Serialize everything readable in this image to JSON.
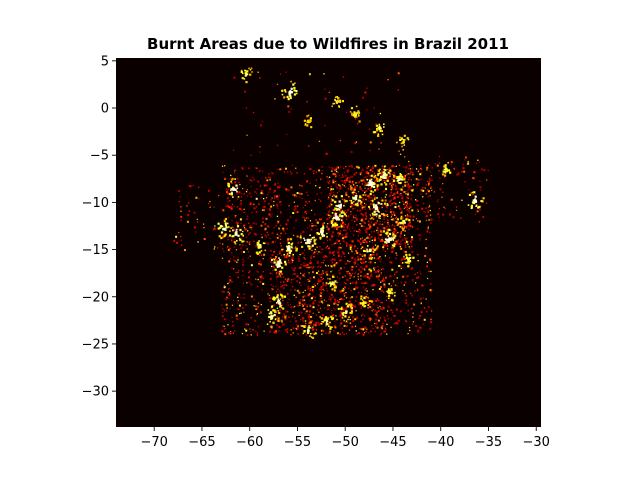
{
  "chart_data": {
    "type": "heatmap",
    "title": "Burnt Areas due to Wildfires in Brazil 2011",
    "xlabel": "",
    "ylabel": "",
    "xlim": [
      -74,
      -29.5
    ],
    "ylim": [
      -33.8,
      5.3
    ],
    "x_ticks": [
      -70,
      -65,
      -60,
      -55,
      -50,
      -45,
      -40,
      -35,
      -30
    ],
    "x_tick_labels": [
      "−70",
      "−65",
      "−60",
      "−55",
      "−50",
      "−45",
      "−40",
      "−35",
      "−30"
    ],
    "y_ticks": [
      5,
      0,
      -5,
      -10,
      -15,
      -20,
      -25,
      -30
    ],
    "y_tick_labels": [
      "5",
      "0",
      "−5",
      "−10",
      "−15",
      "−20",
      "−25",
      "−30"
    ],
    "colormap": "hot",
    "background_color": "#0a0000",
    "grid": false,
    "hotspots": [
      {
        "lon": -60.5,
        "lat": 3.8,
        "intensity": 0.6
      },
      {
        "lon": -55.8,
        "lat": 1.8,
        "intensity": 1.0
      },
      {
        "lon": -51.0,
        "lat": 0.8,
        "intensity": 0.5
      },
      {
        "lon": -49.0,
        "lat": -0.6,
        "intensity": 0.5
      },
      {
        "lon": -46.5,
        "lat": -2.0,
        "intensity": 0.6
      },
      {
        "lon": -44.0,
        "lat": -3.5,
        "intensity": 0.5
      },
      {
        "lon": -54.0,
        "lat": -1.3,
        "intensity": 0.4
      },
      {
        "lon": -61.8,
        "lat": -8.5,
        "intensity": 0.9
      },
      {
        "lon": -62.8,
        "lat": -12.7,
        "intensity": 0.9
      },
      {
        "lon": -61.5,
        "lat": -13.2,
        "intensity": 0.9
      },
      {
        "lon": -59.0,
        "lat": -14.5,
        "intensity": 0.7
      },
      {
        "lon": -57.0,
        "lat": -16.5,
        "intensity": 1.0
      },
      {
        "lon": -56.0,
        "lat": -14.8,
        "intensity": 0.8
      },
      {
        "lon": -54.0,
        "lat": -14.0,
        "intensity": 1.0
      },
      {
        "lon": -52.5,
        "lat": -13.0,
        "intensity": 0.9
      },
      {
        "lon": -51.0,
        "lat": -11.5,
        "intensity": 1.0
      },
      {
        "lon": -50.7,
        "lat": -10.3,
        "intensity": 1.0
      },
      {
        "lon": -49.0,
        "lat": -9.5,
        "intensity": 0.9
      },
      {
        "lon": -47.5,
        "lat": -8.0,
        "intensity": 1.0
      },
      {
        "lon": -46.0,
        "lat": -7.0,
        "intensity": 0.9
      },
      {
        "lon": -44.5,
        "lat": -7.5,
        "intensity": 0.8
      },
      {
        "lon": -46.8,
        "lat": -10.5,
        "intensity": 1.0
      },
      {
        "lon": -45.5,
        "lat": -13.8,
        "intensity": 1.0
      },
      {
        "lon": -47.5,
        "lat": -15.0,
        "intensity": 0.8
      },
      {
        "lon": -44.0,
        "lat": -12.0,
        "intensity": 0.7
      },
      {
        "lon": -36.5,
        "lat": -9.8,
        "intensity": 1.0
      },
      {
        "lon": -39.5,
        "lat": -6.5,
        "intensity": 0.6
      },
      {
        "lon": -57.8,
        "lat": -22.0,
        "intensity": 0.8
      },
      {
        "lon": -57.0,
        "lat": -20.5,
        "intensity": 0.9
      },
      {
        "lon": -54.0,
        "lat": -23.5,
        "intensity": 0.8
      },
      {
        "lon": -52.0,
        "lat": -22.5,
        "intensity": 0.7
      },
      {
        "lon": -50.0,
        "lat": -21.5,
        "intensity": 0.7
      },
      {
        "lon": -48.0,
        "lat": -20.5,
        "intensity": 0.6
      },
      {
        "lon": -45.5,
        "lat": -19.5,
        "intensity": 0.6
      },
      {
        "lon": -43.5,
        "lat": -16.0,
        "intensity": 0.6
      },
      {
        "lon": -51.5,
        "lat": -18.5,
        "intensity": 0.6
      }
    ],
    "regions": [
      {
        "lon_min": -63,
        "lon_max": -41,
        "lat_min": -24,
        "lat_max": -6,
        "density": 0.035
      },
      {
        "lon_min": -52,
        "lon_max": -43,
        "lat_min": -15,
        "lat_max": -6,
        "density": 0.09
      },
      {
        "lon_min": -58,
        "lon_max": -46,
        "lat_min": -24,
        "lat_max": -15,
        "density": 0.05
      },
      {
        "lon_min": -68,
        "lon_max": -56,
        "lat_min": -15,
        "lat_max": -8,
        "density": 0.02
      },
      {
        "lon_min": -44,
        "lon_max": -35,
        "lat_min": -12,
        "lat_max": -5,
        "density": 0.02
      },
      {
        "lon_min": -62,
        "lon_max": -44,
        "lat_min": -5,
        "lat_max": 4,
        "density": 0.004
      }
    ]
  }
}
